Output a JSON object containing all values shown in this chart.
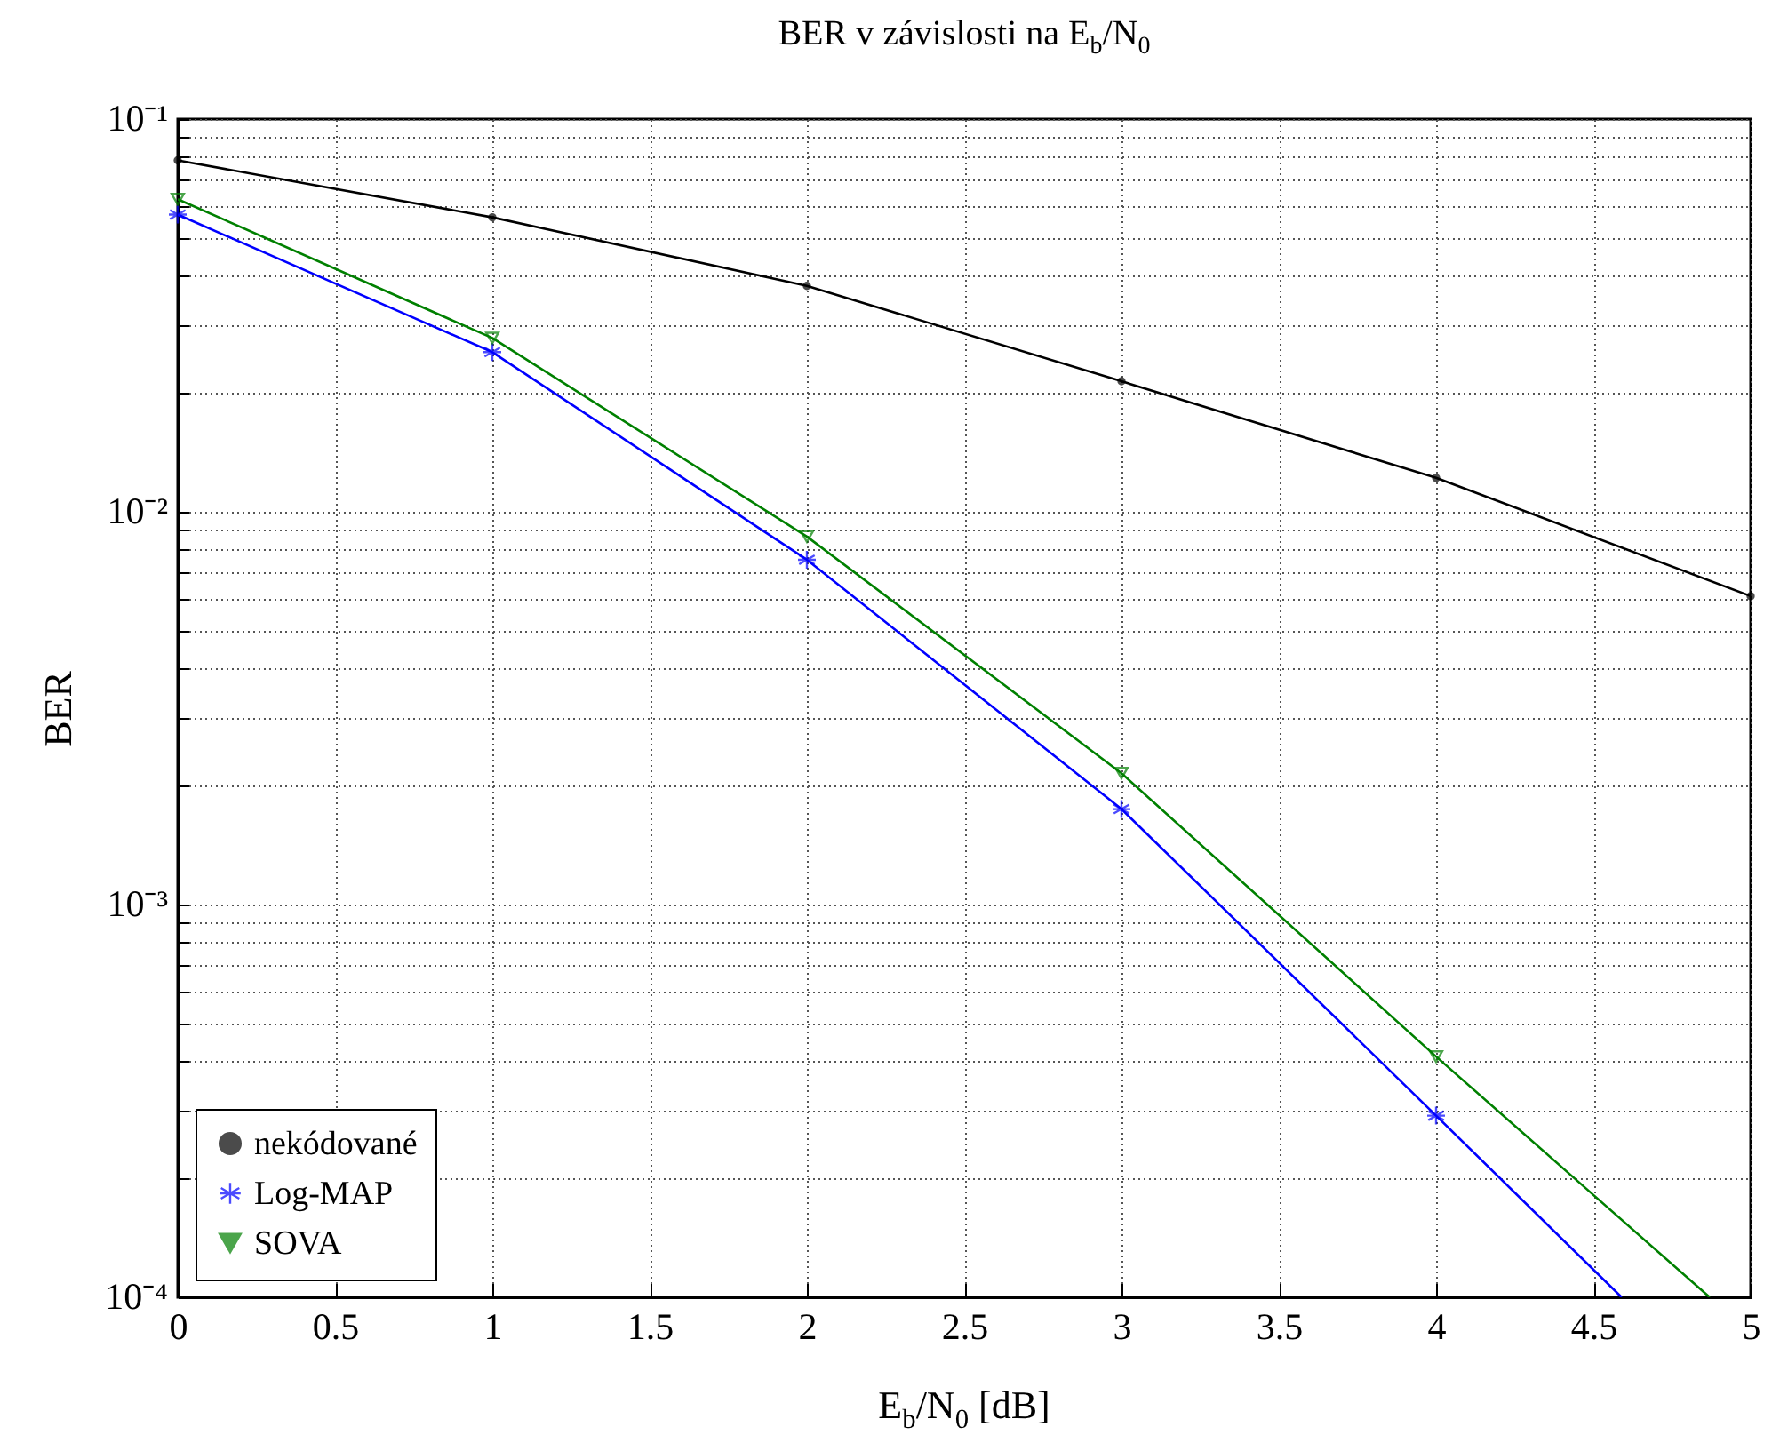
{
  "chart_data": {
    "type": "line",
    "title": "BER v závislosti na E$_{b}$/N$_{0}$",
    "xlabel": "E$_{b}$/N$_{0}$ [dB]",
    "ylabel": "BER",
    "x": [
      0,
      1,
      2,
      3,
      4,
      5
    ],
    "series": [
      {
        "name": "nekódované",
        "color": "#000000",
        "marker": "circle",
        "values": [
          0.0785,
          0.0562,
          0.0376,
          0.0215,
          0.0122,
          0.0061
        ]
      },
      {
        "name": "Log-MAP",
        "color": "#0000ff",
        "marker": "cross",
        "x": [
          0,
          1,
          2,
          3,
          4,
          4.59
        ],
        "values": [
          0.0571,
          0.0255,
          0.00755,
          0.00175,
          0.00029,
          0.0001
        ]
      },
      {
        "name": "SOVA",
        "color": "#008000",
        "marker": "triangle",
        "x": [
          0,
          1,
          2,
          3,
          4,
          4.87
        ],
        "values": [
          0.0625,
          0.0277,
          0.00865,
          0.00216,
          0.00041,
          0.0001
        ]
      }
    ],
    "log": "y",
    "xlim": [
      0,
      5
    ],
    "ylim": [
      0.0001,
      0.1
    ],
    "xticks": [
      0,
      0.5,
      1,
      1.5,
      2,
      2.5,
      3,
      3.5,
      4,
      4.5,
      5
    ],
    "yticks": [
      {
        "value": 0.0001,
        "label": "10⁻⁴"
      },
      {
        "value": 0.0002,
        "label": null
      },
      {
        "value": 0.0003,
        "label": null
      },
      {
        "value": 0.0004,
        "label": null
      },
      {
        "value": 0.0005,
        "label": null
      },
      {
        "value": 0.0006,
        "label": null
      },
      {
        "value": 0.0007,
        "label": null
      },
      {
        "value": 0.0008,
        "label": null
      },
      {
        "value": 0.0009,
        "label": null
      },
      {
        "value": 0.001,
        "label": "10⁻³"
      },
      {
        "value": 0.002,
        "label": null
      },
      {
        "value": 0.003,
        "label": null
      },
      {
        "value": 0.004,
        "label": null
      },
      {
        "value": 0.005,
        "label": null
      },
      {
        "value": 0.006,
        "label": null
      },
      {
        "value": 0.007,
        "label": null
      },
      {
        "value": 0.008,
        "label": null
      },
      {
        "value": 0.009,
        "label": null
      },
      {
        "value": 0.01,
        "label": "10⁻²"
      },
      {
        "value": 0.02,
        "label": null
      },
      {
        "value": 0.03,
        "label": null
      },
      {
        "value": 0.04,
        "label": null
      },
      {
        "value": 0.05,
        "label": null
      },
      {
        "value": 0.06,
        "label": null
      },
      {
        "value": 0.07,
        "label": null
      },
      {
        "value": 0.08,
        "label": null
      },
      {
        "value": 0.09,
        "label": null
      },
      {
        "value": 0.1,
        "label": "10⁻¹"
      }
    ],
    "grid": true,
    "legend": "bottom left",
    "line_style": "solid"
  }
}
